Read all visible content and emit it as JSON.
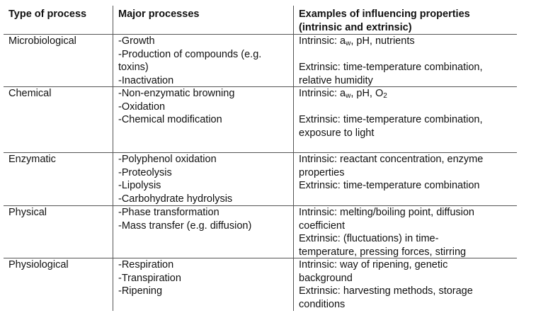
{
  "table": {
    "header": [
      [
        "Type of process"
      ],
      [
        "Major processes"
      ],
      [
        "Examples of influencing properties",
        "(intrinsic and extrinsic)"
      ]
    ],
    "rows": [
      [
        [
          [
            "Microbiological"
          ]
        ],
        [
          [
            "-Growth",
            "-Production of compounds (e.g.",
            "toxins)",
            "-Inactivation"
          ]
        ],
        [
          [
            [
              {
                "text": "Intrinsic: a"
              },
              {
                "text": "w",
                "sub": true
              },
              {
                "text": ", pH, nutrients"
              }
            ]
          ],
          [
            "Extrinsic: time-temperature combination,",
            "relative humidity"
          ]
        ]
      ],
      [
        [
          [
            "Chemical"
          ]
        ],
        [
          [
            "-Non-enzymatic browning",
            "-Oxidation",
            "-Chemical modification"
          ]
        ],
        [
          [
            [
              {
                "text": "Intrinsic: a"
              },
              {
                "text": "w",
                "sub": true
              },
              {
                "text": ", pH, O"
              },
              {
                "text": "2",
                "sub": true
              }
            ]
          ],
          [
            "Extrinsic: time-temperature combination,",
            "exposure to light"
          ]
        ]
      ],
      [
        [
          [
            "Enzymatic"
          ]
        ],
        [
          [
            "-Polyphenol oxidation",
            "-Proteolysis",
            "-Lipolysis",
            "-Carbohydrate hydrolysis"
          ]
        ],
        [
          [
            "Intrinsic: reactant concentration, enzyme",
            "properties"
          ],
          [
            "Extrinsic: time-temperature combination"
          ]
        ]
      ],
      [
        [
          [
            "Physical"
          ]
        ],
        [
          [
            "-Phase transformation",
            "-Mass transfer (e.g. diffusion)"
          ]
        ],
        [
          [
            "Intrinsic: melting/boiling point, diffusion",
            "coefficient"
          ],
          [
            "Extrinsic: (fluctuations) in time-",
            "temperature, pressing forces, stirring"
          ]
        ]
      ],
      [
        [
          [
            "Physiological"
          ]
        ],
        [
          [
            "-Respiration",
            "-Transpiration",
            "-Ripening"
          ]
        ],
        [
          [
            "Intrinsic: way of ripening, genetic",
            "background"
          ],
          [
            "Extrinsic: harvesting methods, storage",
            "conditions"
          ]
        ]
      ]
    ]
  }
}
